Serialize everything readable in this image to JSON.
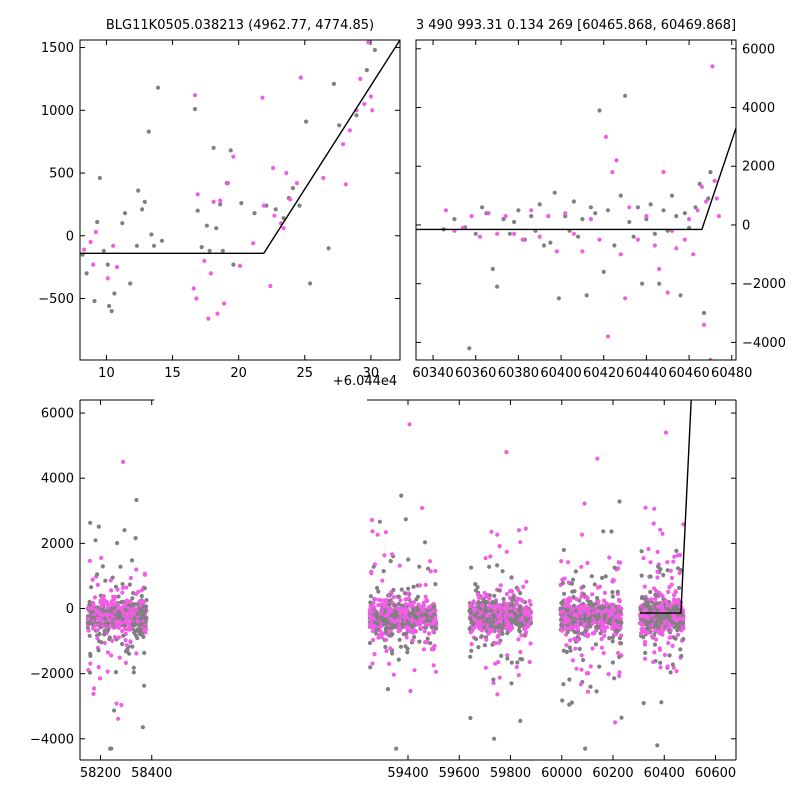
{
  "colors": {
    "gray_points": "#808080",
    "magenta_points": "#f25ce6",
    "model_line": "#000000",
    "axes": "#000000"
  },
  "panels": {
    "top_left": {
      "title": "BLG11K0505.038213 (4962.77, 4774.85)",
      "offset_label": "+6.044e4"
    },
    "top_right": {
      "title": "3 490 993.31 0.134 269 [60465.868, 60469.868]"
    }
  },
  "chart_data": [
    {
      "type": "scatter",
      "panel": "top_left",
      "title": "BLG11K0505.038213 (4962.77, 4774.85)",
      "x_offset": 60440,
      "x_offset_label": "+6.044e4",
      "xlim": [
        8,
        32.2
      ],
      "ylim": [
        -990,
        1560
      ],
      "x_ticks": [
        10,
        15,
        20,
        25,
        30
      ],
      "y_ticks": [
        -500,
        0,
        500,
        1000,
        1500
      ],
      "y_axis_side": "left",
      "model_line": [
        [
          8,
          -140
        ],
        [
          21.9,
          -140
        ],
        [
          32.2,
          1560
        ]
      ],
      "series": [
        {
          "color": "gray",
          "points": [
            [
              8.2,
              -150
            ],
            [
              8.5,
              -300
            ],
            [
              9.1,
              -520
            ],
            [
              9.3,
              110
            ],
            [
              9.5,
              460
            ],
            [
              9.8,
              -120
            ],
            [
              10.1,
              -230
            ],
            [
              10.2,
              -560
            ],
            [
              10.4,
              -600
            ],
            [
              10.6,
              -460
            ],
            [
              11.2,
              100
            ],
            [
              11.4,
              180
            ],
            [
              11.8,
              -380
            ],
            [
              12.3,
              -80
            ],
            [
              12.4,
              360
            ],
            [
              12.7,
              210
            ],
            [
              12.9,
              270
            ],
            [
              13.2,
              830
            ],
            [
              13.4,
              10
            ],
            [
              13.6,
              -80
            ],
            [
              13.9,
              1180
            ],
            [
              14.2,
              -40
            ],
            [
              16.7,
              1010
            ],
            [
              16.9,
              200
            ],
            [
              17.2,
              -90
            ],
            [
              17.6,
              80
            ],
            [
              17.8,
              -120
            ],
            [
              18.1,
              700
            ],
            [
              18.3,
              60
            ],
            [
              18.6,
              250
            ],
            [
              18.8,
              -120
            ],
            [
              19.1,
              420
            ],
            [
              19.4,
              680
            ],
            [
              19.6,
              -230
            ],
            [
              20.2,
              260
            ],
            [
              21.2,
              180
            ],
            [
              22.1,
              240
            ],
            [
              22.8,
              210
            ],
            [
              23.4,
              140
            ],
            [
              23.8,
              300
            ],
            [
              24.1,
              380
            ],
            [
              24.6,
              240
            ],
            [
              25.1,
              910
            ],
            [
              25.4,
              -380
            ],
            [
              26.8,
              -100
            ],
            [
              27.2,
              1210
            ],
            [
              27.6,
              880
            ],
            [
              28.9,
              960
            ],
            [
              29.7,
              1320
            ],
            [
              30.3,
              1480
            ]
          ]
        },
        {
          "color": "magenta",
          "points": [
            [
              8.3,
              -110
            ],
            [
              8.8,
              -50
            ],
            [
              9.0,
              -230
            ],
            [
              9.2,
              30
            ],
            [
              10.1,
              -340
            ],
            [
              10.5,
              -80
            ],
            [
              10.8,
              -250
            ],
            [
              16.6,
              -420
            ],
            [
              16.7,
              1120
            ],
            [
              16.8,
              -500
            ],
            [
              16.9,
              330
            ],
            [
              17.4,
              -200
            ],
            [
              17.7,
              -660
            ],
            [
              17.9,
              -300
            ],
            [
              18.1,
              270
            ],
            [
              18.4,
              -620
            ],
            [
              18.6,
              280
            ],
            [
              18.9,
              -540
            ],
            [
              19.2,
              420
            ],
            [
              19.6,
              630
            ],
            [
              20.1,
              -240
            ],
            [
              21.1,
              -60
            ],
            [
              21.8,
              1100
            ],
            [
              21.9,
              240
            ],
            [
              22.4,
              -400
            ],
            [
              22.6,
              540
            ],
            [
              22.7,
              160
            ],
            [
              23.2,
              100
            ],
            [
              23.4,
              60
            ],
            [
              23.6,
              500
            ],
            [
              23.9,
              290
            ],
            [
              24.4,
              420
            ],
            [
              24.7,
              1260
            ],
            [
              26.4,
              460
            ],
            [
              27.9,
              730
            ],
            [
              28.1,
              410
            ],
            [
              28.4,
              840
            ],
            [
              28.9,
              1000
            ],
            [
              29.2,
              1250
            ],
            [
              29.5,
              1050
            ],
            [
              29.8,
              1540
            ],
            [
              30.0,
              1110
            ],
            [
              30.1,
              1000
            ]
          ]
        }
      ]
    },
    {
      "type": "scatter",
      "panel": "top_right",
      "title": "3 490 993.31 0.134 269 [60465.868, 60469.868]",
      "xlim": [
        60332,
        60482
      ],
      "ylim": [
        -4600,
        6300
      ],
      "x_ticks": [
        60340,
        60360,
        60380,
        60400,
        60420,
        60440,
        60460,
        60480
      ],
      "y_ticks": [
        -4000,
        -2000,
        0,
        2000,
        4000,
        6000
      ],
      "y_axis_side": "right",
      "model_line": [
        [
          60332,
          -150
        ],
        [
          60466,
          -150
        ],
        [
          60482,
          3300
        ]
      ],
      "series": [
        {
          "color": "gray",
          "points": [
            [
              60345,
              -150
            ],
            [
              60350,
              200
            ],
            [
              60355,
              -80
            ],
            [
              60357,
              -4200
            ],
            [
              60360,
              -300
            ],
            [
              60363,
              600
            ],
            [
              60365,
              400
            ],
            [
              60368,
              -1500
            ],
            [
              60370,
              -2100
            ],
            [
              60373,
              200
            ],
            [
              60376,
              -300
            ],
            [
              60378,
              100
            ],
            [
              60380,
              500
            ],
            [
              60383,
              -500
            ],
            [
              60386,
              300
            ],
            [
              60388,
              -200
            ],
            [
              60390,
              700
            ],
            [
              60392,
              -700
            ],
            [
              60395,
              -600
            ],
            [
              60397,
              1100
            ],
            [
              60399,
              -2500
            ],
            [
              60402,
              300
            ],
            [
              60404,
              -200
            ],
            [
              60406,
              800
            ],
            [
              60408,
              -400
            ],
            [
              60410,
              200
            ],
            [
              60412,
              -2400
            ],
            [
              60414,
              600
            ],
            [
              60416,
              400
            ],
            [
              60418,
              3900
            ],
            [
              60420,
              -1600
            ],
            [
              60422,
              500
            ],
            [
              60425,
              -700
            ],
            [
              60428,
              1000
            ],
            [
              60430,
              4400
            ],
            [
              60432,
              100
            ],
            [
              60434,
              -400
            ],
            [
              60436,
              600
            ],
            [
              60438,
              -2000
            ],
            [
              60440,
              200
            ],
            [
              60442,
              700
            ],
            [
              60444,
              -300
            ],
            [
              60446,
              -2000
            ],
            [
              60448,
              500
            ],
            [
              60450,
              -200
            ],
            [
              60452,
              1000
            ],
            [
              60454,
              300
            ],
            [
              60456,
              -2400
            ],
            [
              60458,
              400
            ],
            [
              60460,
              -100
            ],
            [
              60463,
              600
            ],
            [
              60465,
              1400
            ],
            [
              60467,
              -3000
            ],
            [
              60469,
              900
            ],
            [
              60470,
              1800
            ]
          ]
        },
        {
          "color": "magenta",
          "points": [
            [
              60346,
              500
            ],
            [
              60350,
              -200
            ],
            [
              60354,
              -100
            ],
            [
              60358,
              300
            ],
            [
              60362,
              -400
            ],
            [
              60366,
              400
            ],
            [
              60370,
              -300
            ],
            [
              60374,
              300
            ],
            [
              60378,
              -300
            ],
            [
              60382,
              -500
            ],
            [
              60386,
              500
            ],
            [
              60390,
              -400
            ],
            [
              60394,
              300
            ],
            [
              60398,
              -900
            ],
            [
              60402,
              400
            ],
            [
              60406,
              -300
            ],
            [
              60410,
              -900
            ],
            [
              60414,
              200
            ],
            [
              60418,
              -500
            ],
            [
              60421,
              3000
            ],
            [
              60422,
              -3800
            ],
            [
              60424,
              1800
            ],
            [
              60426,
              2200
            ],
            [
              60428,
              -1000
            ],
            [
              60430,
              -2500
            ],
            [
              60432,
              600
            ],
            [
              60436,
              -500
            ],
            [
              60440,
              300
            ],
            [
              60444,
              -700
            ],
            [
              60446,
              -1500
            ],
            [
              60448,
              1800
            ],
            [
              60450,
              -2300
            ],
            [
              60452,
              -200
            ],
            [
              60454,
              -800
            ],
            [
              60458,
              -500
            ],
            [
              60460,
              200
            ],
            [
              60462,
              -1000
            ],
            [
              60464,
              500
            ],
            [
              60466,
              1300
            ],
            [
              60467,
              -3400
            ],
            [
              60468,
              800
            ],
            [
              60470,
              -4600
            ],
            [
              60471,
              5400
            ],
            [
              60472,
              1500
            ],
            [
              60473,
              900
            ],
            [
              60474,
              300
            ]
          ]
        }
      ]
    },
    {
      "type": "scatter",
      "panel": "bottom",
      "xlim": [
        58120,
        60680
      ],
      "ylim": [
        -4650,
        6400
      ],
      "x_ticks": [
        58200,
        58400,
        59400,
        59600,
        59800,
        60000,
        60200,
        60400,
        60600
      ],
      "y_ticks": [
        -4000,
        -2000,
        0,
        2000,
        4000,
        6000
      ],
      "y_axis_side": "left",
      "axis_gap": [
        58410,
        59240
      ],
      "model_line": [
        [
          60305,
          -140
        ],
        [
          60465,
          -140
        ],
        [
          60505,
          6400
        ]
      ],
      "season_clusters": [
        {
          "x_range": [
            58150,
            58380
          ],
          "y_peak_positive": 4500,
          "y_peak_negative": -4300
        },
        {
          "x_range": [
            59250,
            59510
          ],
          "y_peak_positive": 5650,
          "y_peak_negative": -4300
        },
        {
          "x_range": [
            59640,
            59880
          ],
          "y_peak_positive": 4800,
          "y_peak_negative": -4000
        },
        {
          "x_range": [
            59995,
            60235
          ],
          "y_peak_positive": 4600,
          "y_peak_negative": -4300
        },
        {
          "x_range": [
            60305,
            60475
          ],
          "y_peak_positive": 5400,
          "y_peak_negative": -4200
        }
      ]
    }
  ]
}
